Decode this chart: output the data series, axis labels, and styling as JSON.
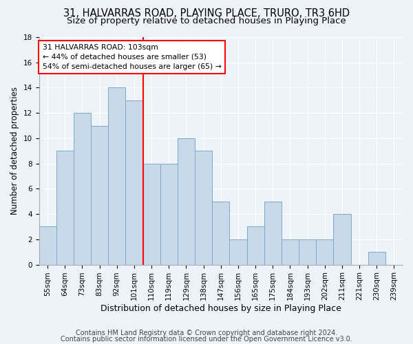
{
  "title1": "31, HALVARRAS ROAD, PLAYING PLACE, TRURO, TR3 6HD",
  "title2": "Size of property relative to detached houses in Playing Place",
  "xlabel": "Distribution of detached houses by size in Playing Place",
  "ylabel": "Number of detached properties",
  "categories": [
    "55sqm",
    "64sqm",
    "73sqm",
    "83sqm",
    "92sqm",
    "101sqm",
    "110sqm",
    "119sqm",
    "129sqm",
    "138sqm",
    "147sqm",
    "156sqm",
    "165sqm",
    "175sqm",
    "184sqm",
    "193sqm",
    "202sqm",
    "211sqm",
    "221sqm",
    "230sqm",
    "239sqm"
  ],
  "values": [
    3,
    9,
    12,
    11,
    14,
    13,
    8,
    8,
    10,
    9,
    5,
    2,
    3,
    5,
    2,
    2,
    2,
    4,
    0,
    1,
    0
  ],
  "bar_color": "#c8daea",
  "bar_edge_color": "#7aaac8",
  "vline_x": 5.5,
  "vline_color": "red",
  "annotation_line1": "31 HALVARRAS ROAD: 103sqm",
  "annotation_line2": "← 44% of detached houses are smaller (53)",
  "annotation_line3": "54% of semi-detached houses are larger (65) →",
  "annotation_box_color": "white",
  "annotation_box_edge_color": "red",
  "ylim": [
    0,
    18
  ],
  "yticks": [
    0,
    2,
    4,
    6,
    8,
    10,
    12,
    14,
    16,
    18
  ],
  "footer1": "Contains HM Land Registry data © Crown copyright and database right 2024.",
  "footer2": "Contains public sector information licensed under the Open Government Licence v3.0.",
  "bg_color": "#eef3fa",
  "plot_bg_color": "#eef3fa",
  "grid_color": "white",
  "title1_fontsize": 10.5,
  "title2_fontsize": 9.5,
  "tick_fontsize": 7.5,
  "ylabel_fontsize": 8.5,
  "xlabel_fontsize": 9,
  "footer_fontsize": 7
}
